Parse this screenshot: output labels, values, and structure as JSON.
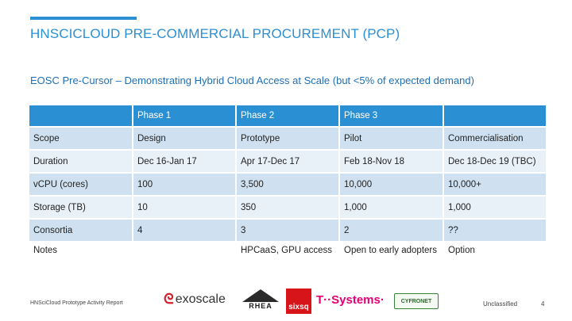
{
  "slide": {
    "title": "HNSCICLOUD PRE-COMMERCIAL PROCUREMENT (PCP)",
    "subtitle": "EOSC Pre-Cursor – Demonstrating Hybrid Cloud Access at Scale (but <5% of expected demand)"
  },
  "table": {
    "headers": [
      "",
      "Phase 1",
      "Phase 2",
      "Phase 3",
      ""
    ],
    "rows": [
      [
        "Scope",
        "Design",
        "Prototype",
        "Pilot",
        "Commercialisation"
      ],
      [
        "Duration",
        "Dec 16-Jan 17",
        "Apr 17-Dec 17",
        "Feb 18-Nov 18",
        "Dec 18-Dec 19 (TBC)"
      ],
      [
        "vCPU (cores)",
        "100",
        "3,500",
        "10,000",
        "10,000+"
      ],
      [
        "Storage (TB)",
        "10",
        "350",
        "1,000",
        "1,000"
      ],
      [
        "Consortia",
        "4",
        "3",
        "2",
        "??"
      ],
      [
        "Notes",
        "",
        "HPCaaS, GPU access",
        "Open to early adopters",
        "Option"
      ]
    ]
  },
  "footer": {
    "report": "HNSciCloud Prototype Activity Report",
    "classification": "Unclassified",
    "page_number": "4"
  },
  "logos": {
    "exoscale": "exoscale",
    "rhea": "RHEA",
    "sixsq": "sixsq",
    "tsystems": "T··Systems·",
    "cyfronet": "CYFRONET"
  },
  "colors": {
    "accent": "#2b8fd3",
    "row_dark": "#cfe1f0",
    "row_light": "#e8f0f8"
  }
}
